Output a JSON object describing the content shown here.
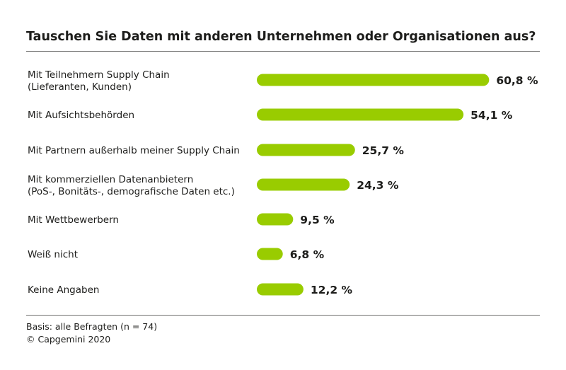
{
  "title": "Tauschen Sie Daten mit anderen Unternehmen oder Organisationen aus?",
  "footnote": "Basis: alle Befragten (n = 74)",
  "copyright": "© Capgemini 2020",
  "colors": {
    "bar": "#99cc00",
    "text": "#1d1d1b",
    "rule": "#6f6f6e"
  },
  "chart_data": {
    "type": "bar",
    "orientation": "horizontal",
    "title": "Tauschen Sie Daten mit anderen Unternehmen oder Organisationen aus?",
    "xlabel": "",
    "ylabel": "",
    "grid": false,
    "xlim": [
      0,
      100
    ],
    "categories": [
      [
        "Mit Teilnehmern Supply Chain",
        "(Lieferanten, Kunden)"
      ],
      [
        "Mit Aufsichtsbehörden"
      ],
      [
        "Mit Partnern außerhalb meiner Supply Chain"
      ],
      [
        "Mit kommerziellen Datenanbietern",
        "(PoS-, Bonitäts-, demografische Daten etc.)"
      ],
      [
        "Mit Wettbewerbern"
      ],
      [
        "Weiß nicht"
      ],
      [
        "Keine Angaben"
      ]
    ],
    "values": [
      60.8,
      54.1,
      25.7,
      24.3,
      9.5,
      6.8,
      12.2
    ],
    "value_labels": [
      "60,8 %",
      "54,1 %",
      "25,7 %",
      "24,3 %",
      "9,5 %",
      "6,8 %",
      "12,2 %"
    ]
  }
}
